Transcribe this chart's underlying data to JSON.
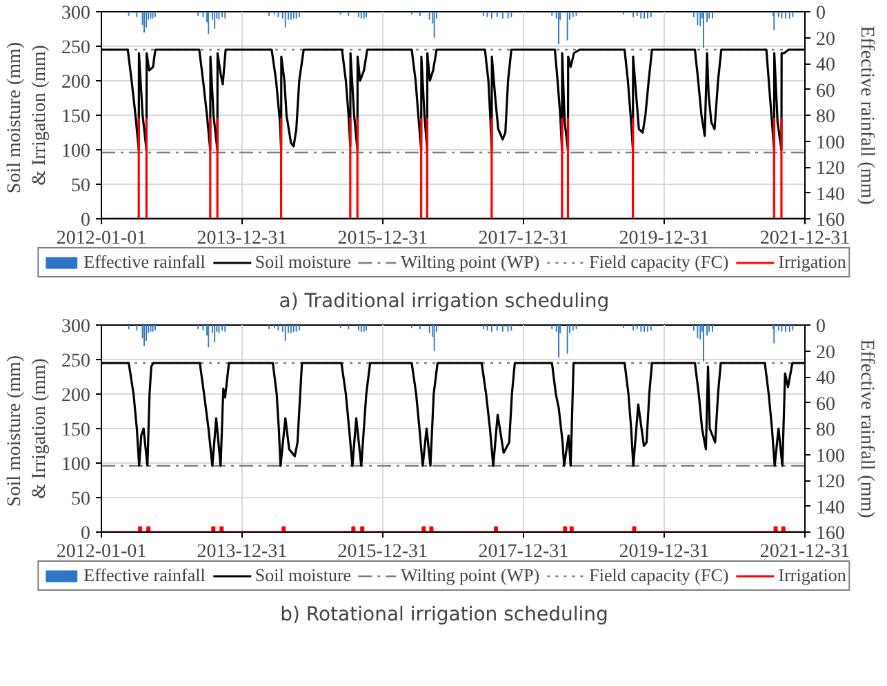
{
  "chart_data": [
    {
      "type": "line",
      "title": "a) Traditional irrigation scheduling",
      "ylabel": "Soil moisture  (mm)\n& Irrigation (mm)",
      "y2label": "Effective rainfall (mm)",
      "xlim": [
        "2012-01-01",
        "2021-12-31"
      ],
      "xticks": [
        "2012-01-01",
        "2013-12-31",
        "2015-12-31",
        "2017-12-31",
        "2019-12-31",
        "2021-12-31"
      ],
      "ylim": [
        0,
        300
      ],
      "yticks": [
        0,
        50,
        100,
        150,
        200,
        250,
        300
      ],
      "y2lim": [
        160,
        0
      ],
      "y2ticks": [
        0,
        20,
        40,
        60,
        80,
        100,
        120,
        140,
        160
      ],
      "grid": true,
      "legend": "bottom",
      "series": [
        {
          "name": "Effective rainfall",
          "type": "bar",
          "axis": "y2",
          "color": "#2e75c6",
          "x": [
            "2012-05-22",
            "2012-07-03",
            "2012-08-01",
            "2012-08-10",
            "2012-08-21",
            "2012-09-01",
            "2012-09-13",
            "2012-09-24",
            "2012-10-06",
            "2013-05-17",
            "2013-06-12",
            "2013-07-02",
            "2013-07-10",
            "2013-07-30",
            "2013-08-11",
            "2013-08-22",
            "2013-09-02",
            "2013-09-19",
            "2013-10-04",
            "2014-05-20",
            "2014-06-17",
            "2014-07-07",
            "2014-07-30",
            "2014-08-13",
            "2014-08-28",
            "2014-09-11",
            "2014-09-25",
            "2014-10-09",
            "2014-10-24",
            "2015-05-26",
            "2015-07-07",
            "2015-08-28",
            "2015-09-11",
            "2015-09-25",
            "2015-10-07",
            "2016-05-30",
            "2016-07-12",
            "2016-08-30",
            "2016-09-16",
            "2016-09-24",
            "2016-10-06",
            "2017-06-06",
            "2017-06-26",
            "2017-07-19",
            "2017-08-16",
            "2017-09-14",
            "2017-10-12",
            "2017-10-29",
            "2018-05-28",
            "2018-06-20",
            "2018-07-02",
            "2018-07-10",
            "2018-08-16",
            "2018-08-28",
            "2018-09-14",
            "2018-10-01",
            "2019-06-03",
            "2019-07-24",
            "2019-08-13",
            "2019-09-02",
            "2019-09-19",
            "2019-10-07",
            "2019-10-24",
            "2020-06-02",
            "2020-06-22",
            "2020-07-06",
            "2020-07-15",
            "2020-07-23",
            "2020-08-10",
            "2020-08-21",
            "2020-09-07",
            "2021-07-19",
            "2021-07-24",
            "2021-08-16",
            "2021-09-02",
            "2021-09-22",
            "2021-10-12",
            "2021-10-29"
          ],
          "values": [
            3,
            4,
            10,
            16,
            12,
            6,
            5,
            5,
            4,
            3,
            4,
            8,
            17,
            6,
            13,
            5,
            6,
            4,
            5,
            3,
            2,
            4,
            5,
            12,
            6,
            6,
            5,
            5,
            4,
            2,
            3,
            4,
            5,
            5,
            4,
            2,
            3,
            6,
            9,
            20,
            5,
            3,
            4,
            5,
            4,
            5,
            5,
            4,
            3,
            5,
            25,
            6,
            22,
            6,
            4,
            3,
            2,
            4,
            3,
            5,
            5,
            5,
            4,
            4,
            10,
            11,
            5,
            28,
            8,
            5,
            5,
            3,
            14,
            4,
            5,
            5,
            5,
            4
          ]
        },
        {
          "name": "Soil moisture",
          "color": "#000000",
          "x": [
            "2012-01-01",
            "2012-05-17",
            "2012-06-06",
            "2012-06-26",
            "2012-07-13",
            "2012-07-14",
            "2012-08-02",
            "2012-08-22",
            "2012-08-23",
            "2012-09-05",
            "2012-09-25",
            "2012-10-07",
            "2013-05-23",
            "2013-06-12",
            "2013-07-02",
            "2013-07-19",
            "2013-07-20",
            "2013-08-05",
            "2013-08-25",
            "2013-08-26",
            "2013-09-11",
            "2013-09-22",
            "2013-10-07",
            "2014-06-03",
            "2014-06-26",
            "2014-07-16",
            "2014-07-22",
            "2014-07-23",
            "2014-08-08",
            "2014-08-19",
            "2014-09-11",
            "2014-09-25",
            "2014-10-09",
            "2014-10-24",
            "2014-11-16",
            "2015-06-03",
            "2015-06-23",
            "2015-07-07",
            "2015-07-16",
            "2015-07-17",
            "2015-08-05",
            "2015-08-22",
            "2015-08-23",
            "2015-09-05",
            "2015-09-25",
            "2015-10-12",
            "2016-05-30",
            "2016-06-19",
            "2016-07-06",
            "2016-07-18",
            "2016-07-19",
            "2016-08-04",
            "2016-08-18",
            "2016-08-19",
            "2016-09-01",
            "2016-09-18",
            "2016-10-06",
            "2017-06-14",
            "2017-07-02",
            "2017-07-13",
            "2017-07-19",
            "2017-07-20",
            "2017-08-05",
            "2017-08-22",
            "2017-09-14",
            "2017-09-28",
            "2017-10-12",
            "2017-10-29",
            "2018-06-12",
            "2018-06-26",
            "2018-07-10",
            "2018-07-19",
            "2018-07-20",
            "2018-08-02",
            "2018-08-19",
            "2018-08-20",
            "2018-09-02",
            "2018-09-19",
            "2018-10-18",
            "2019-06-09",
            "2019-06-26",
            "2019-07-13",
            "2019-07-22",
            "2019-07-23",
            "2019-08-08",
            "2019-08-22",
            "2019-09-11",
            "2019-09-25",
            "2019-10-12",
            "2019-10-29",
            "2020-06-08",
            "2020-06-25",
            "2020-07-12",
            "2020-07-29",
            "2020-08-10",
            "2020-08-18",
            "2020-09-01",
            "2020-09-18",
            "2020-10-06",
            "2020-10-23",
            "2021-06-14",
            "2021-06-29",
            "2021-07-13",
            "2021-07-24",
            "2021-07-25",
            "2021-08-11",
            "2021-08-31",
            "2021-09-01",
            "2021-09-14",
            "2021-10-07",
            "2021-12-31"
          ],
          "values": [
            245,
            245,
            200,
            150,
            100,
            240,
            150,
            100,
            240,
            215,
            220,
            245,
            245,
            200,
            150,
            100,
            235,
            150,
            100,
            240,
            210,
            195,
            245,
            245,
            200,
            140,
            100,
            235,
            200,
            150,
            110,
            105,
            130,
            200,
            245,
            245,
            200,
            150,
            105,
            240,
            150,
            100,
            235,
            200,
            215,
            245,
            245,
            200,
            140,
            100,
            235,
            150,
            100,
            240,
            200,
            215,
            245,
            245,
            200,
            140,
            100,
            235,
            180,
            130,
            115,
            125,
            200,
            245,
            245,
            200,
            150,
            100,
            240,
            140,
            100,
            235,
            220,
            240,
            245,
            245,
            200,
            140,
            100,
            235,
            180,
            130,
            125,
            150,
            200,
            245,
            245,
            200,
            150,
            120,
            240,
            180,
            140,
            130,
            200,
            245,
            245,
            190,
            140,
            100,
            240,
            140,
            100,
            240,
            240,
            245,
            245
          ]
        },
        {
          "name": "Irrigation",
          "color": "#ff0000",
          "x": [
            "2012-01-01",
            "2012-07-13",
            "2012-07-13",
            "2012-07-13",
            "2012-08-22",
            "2012-08-22",
            "2012-08-22",
            "2013-07-19",
            "2013-07-19",
            "2013-07-19",
            "2013-08-25",
            "2013-08-25",
            "2013-08-25",
            "2014-07-22",
            "2014-07-22",
            "2014-07-22",
            "2015-07-16",
            "2015-07-16",
            "2015-07-16",
            "2015-08-22",
            "2015-08-22",
            "2015-08-22",
            "2016-07-18",
            "2016-07-18",
            "2016-07-18",
            "2016-08-18",
            "2016-08-18",
            "2016-08-18",
            "2017-07-19",
            "2017-07-19",
            "2017-07-19",
            "2018-07-19",
            "2018-07-19",
            "2018-07-19",
            "2018-08-19",
            "2018-08-19",
            "2018-08-19",
            "2019-07-22",
            "2019-07-22",
            "2019-07-22",
            "2021-07-24",
            "2021-07-24",
            "2021-07-24",
            "2021-08-31",
            "2021-08-31",
            "2021-08-31",
            "2021-12-31"
          ],
          "values": [
            0,
            0,
            145,
            0,
            0,
            145,
            0,
            0,
            145,
            0,
            0,
            145,
            0,
            0,
            145,
            0,
            0,
            145,
            0,
            0,
            145,
            0,
            0,
            145,
            0,
            0,
            145,
            0,
            0,
            145,
            0,
            0,
            145,
            0,
            0,
            145,
            0,
            0,
            145,
            0,
            0,
            145,
            0,
            0,
            145,
            0,
            0
          ]
        }
      ],
      "ref_lines": [
        {
          "axis": "y",
          "value": 96,
          "label": "Wilting point (WP)",
          "color": "#7f7f7f",
          "line_style": "dashed"
        },
        {
          "axis": "y",
          "value": 245,
          "label": "Field capacity (FC)",
          "color": "#7f7f7f",
          "line_style": "dotted"
        }
      ]
    },
    {
      "type": "line",
      "title": "b) Rotational irrigation scheduling",
      "ylabel": "Soil moisture  (mm)\n& Irrigation (mm)",
      "y2label": "Effective rainfall (mm)",
      "xlim": [
        "2012-01-01",
        "2021-12-31"
      ],
      "xticks": [
        "2012-01-01",
        "2013-12-31",
        "2015-12-31",
        "2017-12-31",
        "2019-12-31",
        "2021-12-31"
      ],
      "ylim": [
        0,
        300
      ],
      "yticks": [
        0,
        50,
        100,
        150,
        200,
        250,
        300
      ],
      "y2lim": [
        160,
        0
      ],
      "y2ticks": [
        0,
        20,
        40,
        60,
        80,
        100,
        120,
        140,
        160
      ],
      "grid": true,
      "legend": "bottom",
      "series": [
        {
          "name": "Effective rainfall",
          "type": "bar",
          "axis": "y2",
          "color": "#2e75c6",
          "x": [
            "2012-05-22",
            "2012-07-03",
            "2012-08-01",
            "2012-08-10",
            "2012-08-21",
            "2012-09-01",
            "2012-09-13",
            "2012-09-24",
            "2012-10-06",
            "2013-05-17",
            "2013-06-12",
            "2013-07-02",
            "2013-07-10",
            "2013-07-30",
            "2013-08-11",
            "2013-08-22",
            "2013-09-02",
            "2013-09-19",
            "2013-10-04",
            "2014-05-20",
            "2014-06-17",
            "2014-07-07",
            "2014-07-30",
            "2014-08-13",
            "2014-08-28",
            "2014-09-11",
            "2014-09-25",
            "2014-10-09",
            "2014-10-24",
            "2015-05-26",
            "2015-07-07",
            "2015-08-28",
            "2015-09-11",
            "2015-09-25",
            "2015-10-07",
            "2016-05-30",
            "2016-07-12",
            "2016-08-30",
            "2016-09-16",
            "2016-09-24",
            "2016-10-06",
            "2017-06-06",
            "2017-06-26",
            "2017-07-19",
            "2017-08-16",
            "2017-09-14",
            "2017-10-12",
            "2017-10-29",
            "2018-05-28",
            "2018-06-20",
            "2018-07-02",
            "2018-07-10",
            "2018-08-16",
            "2018-08-28",
            "2018-09-14",
            "2018-10-01",
            "2019-06-03",
            "2019-07-24",
            "2019-08-13",
            "2019-09-02",
            "2019-09-19",
            "2019-10-07",
            "2019-10-24",
            "2020-06-02",
            "2020-06-22",
            "2020-07-06",
            "2020-07-15",
            "2020-07-23",
            "2020-08-10",
            "2020-08-21",
            "2020-09-07",
            "2021-07-19",
            "2021-07-24",
            "2021-08-16",
            "2021-09-02",
            "2021-09-22",
            "2021-10-12",
            "2021-10-29"
          ],
          "values": [
            3,
            4,
            10,
            16,
            12,
            6,
            5,
            5,
            4,
            3,
            4,
            8,
            17,
            6,
            13,
            5,
            6,
            4,
            5,
            3,
            2,
            4,
            5,
            12,
            6,
            6,
            5,
            5,
            4,
            2,
            3,
            4,
            5,
            5,
            4,
            2,
            3,
            6,
            9,
            20,
            5,
            3,
            4,
            5,
            4,
            5,
            5,
            4,
            3,
            5,
            25,
            6,
            22,
            6,
            4,
            3,
            2,
            4,
            3,
            5,
            5,
            5,
            4,
            4,
            10,
            11,
            5,
            28,
            8,
            5,
            5,
            3,
            14,
            4,
            5,
            5,
            5,
            4
          ]
        },
        {
          "name": "Soil moisture",
          "color": "#000000",
          "x": [
            "2012-01-01",
            "2012-05-22",
            "2012-06-16",
            "2012-07-03",
            "2012-07-15",
            "2012-07-26",
            "2012-08-07",
            "2012-08-18",
            "2012-08-27",
            "2012-09-07",
            "2012-09-16",
            "2012-09-27",
            "2013-05-26",
            "2013-06-17",
            "2013-07-10",
            "2013-07-30",
            "2013-08-19",
            "2013-09-11",
            "2013-09-25",
            "2013-10-04",
            "2013-10-24",
            "2014-06-09",
            "2014-06-29",
            "2014-07-10",
            "2014-07-19",
            "2014-08-13",
            "2014-09-02",
            "2014-10-01",
            "2014-10-15",
            "2014-10-29",
            "2014-11-07",
            "2015-05-31",
            "2015-06-23",
            "2015-07-10",
            "2015-07-27",
            "2015-08-16",
            "2015-09-11",
            "2015-10-07",
            "2015-10-27",
            "2016-05-30",
            "2016-06-22",
            "2016-07-09",
            "2016-07-26",
            "2016-08-15",
            "2016-09-04",
            "2016-09-21",
            "2016-10-11",
            "2017-05-28",
            "2017-06-20",
            "2017-07-10",
            "2017-07-27",
            "2017-08-19",
            "2017-09-19",
            "2017-10-18",
            "2017-11-01",
            "2017-11-16",
            "2018-05-28",
            "2018-06-17",
            "2018-07-02",
            "2018-07-22",
            "2018-07-30",
            "2018-08-22",
            "2018-09-02",
            "2018-09-17",
            "2019-06-09",
            "2019-06-29",
            "2019-07-13",
            "2019-07-24",
            "2019-08-19",
            "2019-09-17",
            "2019-10-01",
            "2019-10-15",
            "2019-10-29",
            "2020-06-08",
            "2020-06-28",
            "2020-07-15",
            "2020-08-04",
            "2020-08-15",
            "2020-08-24",
            "2020-09-21",
            "2020-10-06",
            "2020-10-20",
            "2021-06-06",
            "2021-06-26",
            "2021-07-13",
            "2021-07-27",
            "2021-08-16",
            "2021-09-05",
            "2021-09-19",
            "2021-10-04",
            "2021-10-27",
            "2021-12-31"
          ],
          "values": [
            245,
            245,
            200,
            150,
            96,
            140,
            150,
            120,
            96,
            200,
            240,
            245,
            245,
            200,
            150,
            96,
            165,
            96,
            208,
            195,
            245,
            245,
            200,
            150,
            96,
            165,
            120,
            110,
            130,
            200,
            245,
            245,
            200,
            150,
            96,
            165,
            96,
            200,
            245,
            245,
            200,
            150,
            96,
            150,
            96,
            200,
            245,
            245,
            200,
            150,
            96,
            170,
            115,
            130,
            200,
            245,
            245,
            200,
            180,
            130,
            96,
            140,
            96,
            245,
            245,
            200,
            150,
            96,
            185,
            125,
            130,
            200,
            245,
            245,
            200,
            150,
            120,
            240,
            150,
            130,
            200,
            245,
            245,
            200,
            150,
            96,
            150,
            96,
            230,
            210,
            245,
            245
          ]
        },
        {
          "name": "Irrigation",
          "color": "#ff0000",
          "x": [
            "2012-01-01",
            "2012-07-15",
            "2012-07-15",
            "2012-07-25",
            "2012-07-25",
            "2012-08-27",
            "2012-08-27",
            "2012-09-06",
            "2012-09-06",
            "2013-07-30",
            "2013-07-30",
            "2013-08-09",
            "2013-08-09",
            "2013-09-11",
            "2013-09-11",
            "2013-09-21",
            "2013-09-21",
            "2014-07-30",
            "2014-07-30",
            "2014-08-09",
            "2014-08-09",
            "2015-07-27",
            "2015-07-27",
            "2015-08-06",
            "2015-08-06",
            "2015-09-11",
            "2015-09-11",
            "2015-09-21",
            "2015-09-21",
            "2016-07-26",
            "2016-07-26",
            "2016-08-05",
            "2016-08-05",
            "2016-09-04",
            "2016-09-04",
            "2016-09-14",
            "2016-09-14",
            "2017-08-05",
            "2017-08-05",
            "2017-08-15",
            "2017-08-15",
            "2018-07-30",
            "2018-07-30",
            "2018-08-09",
            "2018-08-09",
            "2018-09-02",
            "2018-09-02",
            "2018-09-12",
            "2018-09-12",
            "2019-07-24",
            "2019-07-24",
            "2019-08-03",
            "2019-08-03",
            "2021-07-27",
            "2021-07-27",
            "2021-08-06",
            "2021-08-06",
            "2021-09-05",
            "2021-09-05",
            "2021-09-15",
            "2021-09-15",
            "2021-12-31"
          ],
          "values": [
            0,
            0,
            7,
            7,
            0,
            0,
            7,
            7,
            0,
            0,
            7,
            7,
            0,
            0,
            7,
            7,
            0,
            0,
            7,
            7,
            0,
            0,
            7,
            7,
            0,
            0,
            7,
            7,
            0,
            0,
            7,
            7,
            0,
            0,
            7,
            7,
            0,
            0,
            7,
            7,
            0,
            0,
            7,
            7,
            0,
            0,
            7,
            7,
            0,
            0,
            7,
            7,
            0,
            0,
            7,
            7,
            0,
            0,
            7,
            7,
            0,
            0
          ]
        }
      ],
      "ref_lines": [
        {
          "axis": "y",
          "value": 96,
          "label": "Wilting point (WP)",
          "color": "#7f7f7f",
          "line_style": "dashed"
        },
        {
          "axis": "y",
          "value": 245,
          "label": "Field capacity (FC)",
          "color": "#7f7f7f",
          "line_style": "dotted"
        }
      ]
    }
  ]
}
